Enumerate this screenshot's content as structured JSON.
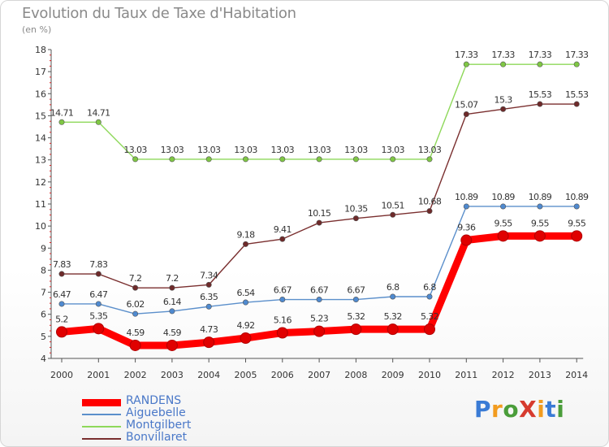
{
  "title": "Evolution du Taux de Taxe d'Habitation",
  "subtitle": "(en %)",
  "logo": {
    "text": "ProXiti",
    "colors": [
      "#3a7bd5",
      "#f29c1f",
      "#4a9d3a",
      "#d63b2f",
      "#f29c1f",
      "#3a7bd5",
      "#4a9d3a"
    ]
  },
  "chart_data": {
    "type": "line",
    "title": "Evolution du Taux de Taxe d'Habitation",
    "ylabel": "(en %)",
    "xlabel": "",
    "x": [
      "2000",
      "2001",
      "2002",
      "2003",
      "2004",
      "2005",
      "2006",
      "2007",
      "2008",
      "2009",
      "2010",
      "2011",
      "2012",
      "2013",
      "2014"
    ],
    "ylim": [
      4,
      18
    ],
    "yticks": [
      "4",
      "5",
      "6",
      "7",
      "8",
      "9",
      "10",
      "11",
      "12",
      "13",
      "14",
      "15",
      "16",
      "17",
      "18"
    ],
    "grid": false,
    "legend_position": "bottom-left",
    "series": [
      {
        "name": "RANDENS",
        "color": "#ff0000",
        "point_color": "#e00000",
        "values": [
          5.2,
          5.35,
          4.59,
          4.59,
          4.73,
          4.92,
          5.16,
          5.23,
          5.32,
          5.32,
          5.32,
          9.36,
          9.55,
          9.55,
          9.55
        ],
        "labels": [
          "5.2",
          "5.35",
          "4.59",
          "4.59",
          "4.73",
          "4.92",
          "5.16",
          "5.23",
          "5.32",
          "5.32",
          "5.32",
          "9.36",
          "9.55",
          "9.55",
          "9.55"
        ]
      },
      {
        "name": "Aiguebelle",
        "color": "#5b8fcb",
        "point_color": "#4f8ad0",
        "values": [
          6.47,
          6.47,
          6.02,
          6.14,
          6.35,
          6.54,
          6.67,
          6.67,
          6.67,
          6.8,
          6.8,
          10.89,
          10.89,
          10.89,
          10.89
        ],
        "labels": [
          "6.47",
          "6.47",
          "6.02",
          "6.14",
          "6.35",
          "6.54",
          "6.67",
          "6.67",
          "6.67",
          "6.8",
          "6.8",
          "10.89",
          "10.89",
          "10.89",
          "10.89"
        ]
      },
      {
        "name": "Montgilbert",
        "color": "#8ed85a",
        "point_color": "#7fc744",
        "values": [
          14.71,
          14.71,
          13.03,
          13.03,
          13.03,
          13.03,
          13.03,
          13.03,
          13.03,
          13.03,
          13.03,
          17.33,
          17.33,
          17.33,
          17.33
        ],
        "labels": [
          "14.71",
          "14.71",
          "13.03",
          "13.03",
          "13.03",
          "13.03",
          "13.03",
          "13.03",
          "13.03",
          "13.03",
          "13.03",
          "17.33",
          "17.33",
          "17.33",
          "17.33"
        ]
      },
      {
        "name": "Bonvillaret",
        "color": "#7a2f2f",
        "point_color": "#6e2a2a",
        "values": [
          7.83,
          7.83,
          7.2,
          7.2,
          7.34,
          9.18,
          9.41,
          10.15,
          10.35,
          10.51,
          10.68,
          15.07,
          15.3,
          15.53,
          15.53
        ],
        "labels": [
          "7.83",
          "7.83",
          "7.2",
          "7.2",
          "7.34",
          "9.18",
          "9.41",
          "10.15",
          "10.35",
          "10.51",
          "10.68",
          "15.07",
          "15.3",
          "15.53",
          "15.53"
        ]
      }
    ]
  }
}
